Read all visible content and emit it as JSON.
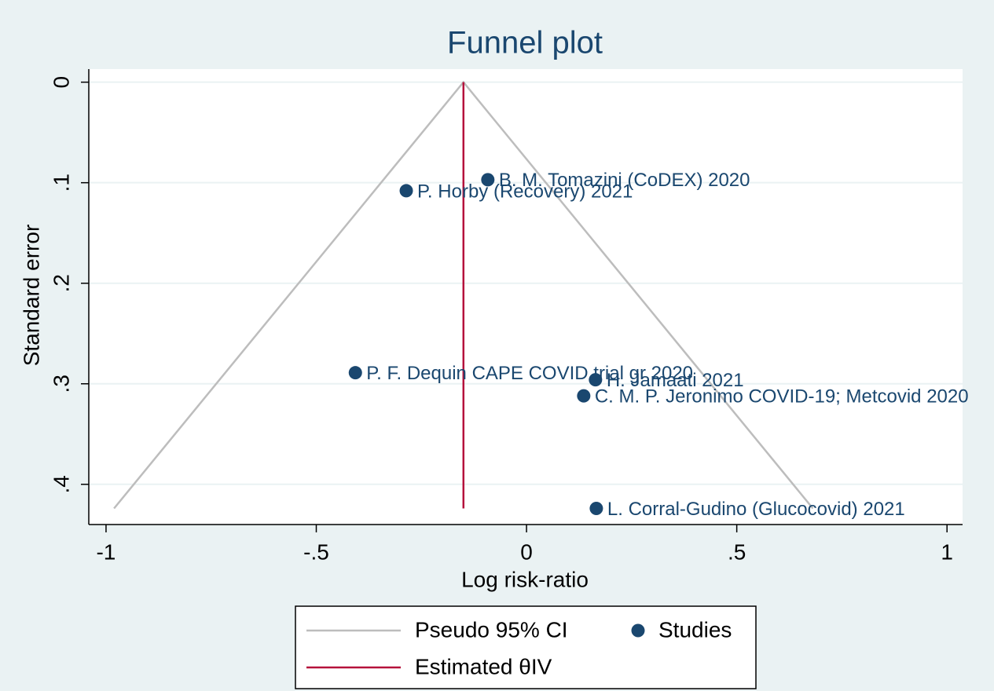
{
  "chart_data": {
    "type": "scatter",
    "title": "Funnel plot",
    "x_label": "Log risk-ratio",
    "y_label": "Standard error",
    "xlim": [
      -1.041,
      1.037
    ],
    "ylim": [
      0.44,
      -0.013
    ],
    "xticks": [
      -1,
      {
        "value": -0.5,
        "label": "-.5"
      },
      0,
      {
        "value": 0.5,
        "label": ".5"
      },
      1
    ],
    "yticks": [
      0,
      {
        "value": 0.1,
        "label": ".1"
      },
      {
        "value": 0.2,
        "label": ".2"
      },
      {
        "value": 0.3,
        "label": ".3"
      },
      {
        "value": 0.4,
        "label": ".4"
      }
    ],
    "grid": true,
    "legend": "bottom",
    "series": [
      {
        "name": "Pseudo 95% CI",
        "type": "line",
        "color": "#bdbdbd",
        "x": [
          -0.981,
          -0.15,
          0.681
        ],
        "values": [
          0.424,
          0,
          0.424
        ]
      },
      {
        "name": "Estimated θIV",
        "type": "line",
        "color": "#b5123c",
        "x": [
          -0.15,
          -0.15
        ],
        "values": [
          0,
          0.424
        ]
      },
      {
        "name": "Studies",
        "type": "scatter",
        "color": "#1a476f",
        "x": [
          -0.092,
          -0.286,
          -0.407,
          0.164,
          0.136,
          0.166
        ],
        "values": [
          0.097,
          0.108,
          0.289,
          0.296,
          0.312,
          0.424
        ],
        "labels": [
          "B. M. Tomazini (CoDEX) 2020",
          "P. Horby (Recovery) 2021",
          "P. F. Dequin CAPE COVID trial gr 2020",
          "H. Jamaati 2021",
          "C. M. P. Jeronimo COVID-19; Metcovid 2020",
          "L. Corral-Gudino (Glucocovid) 2021"
        ]
      }
    ]
  }
}
